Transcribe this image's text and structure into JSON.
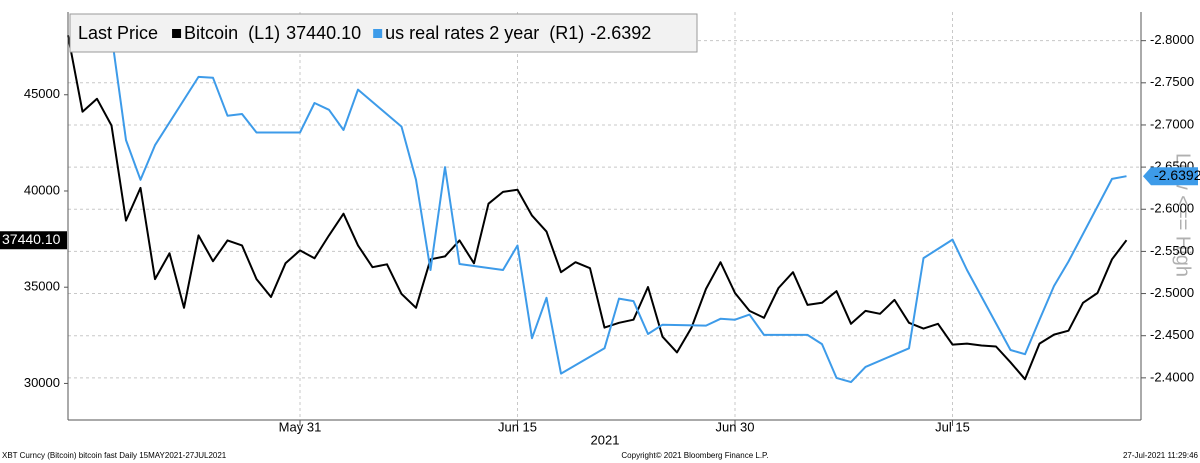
{
  "chart_data": {
    "type": "line",
    "legend_title": "Last Price",
    "xlabel": "2021",
    "y2label": "Low <== High",
    "footer_left": "XBT Curncy (Bitcoin) bitcoin fast  Daily 15MAY2021-27JUL2021",
    "footer_center": "Copyright© 2021 Bloomberg Finance L.P.",
    "footer_right": "27-Jul-2021 11:29:46",
    "xlim": [
      "2021-05-15",
      "2021-07-28"
    ],
    "xticks": [
      {
        "value": "2021-05-31",
        "label": "May 31"
      },
      {
        "value": "2021-06-15",
        "label": "Jun 15"
      },
      {
        "value": "2021-06-30",
        "label": "Jun 30"
      },
      {
        "value": "2021-07-15",
        "label": "Jul 15"
      }
    ],
    "ylim": [
      28100,
      49300
    ],
    "yticks": [
      30000,
      35000,
      40000,
      45000
    ],
    "y2lim": [
      -2.35,
      -2.834
    ],
    "y2ticks": [
      {
        "value": -2.8,
        "label": "-2.8000"
      },
      {
        "value": -2.75,
        "label": "-2.7500"
      },
      {
        "value": -2.7,
        "label": "-2.7000"
      },
      {
        "value": -2.65,
        "label": "-2.6500"
      },
      {
        "value": -2.6,
        "label": "-2.6000"
      },
      {
        "value": -2.55,
        "label": "-2.5500"
      },
      {
        "value": -2.5,
        "label": "-2.5000"
      },
      {
        "value": -2.45,
        "label": "-2.4500"
      },
      {
        "value": -2.4,
        "label": "-2.4000"
      }
    ],
    "grid": true,
    "series": [
      {
        "name": "Bitcoin  (L1)",
        "color": "#000000",
        "axis": "y",
        "last_value_label": "37440.10",
        "x": [
          "2021-05-15",
          "2021-05-16",
          "2021-05-17",
          "2021-05-18",
          "2021-05-19",
          "2021-05-20",
          "2021-05-21",
          "2021-05-22",
          "2021-05-23",
          "2021-05-24",
          "2021-05-25",
          "2021-05-26",
          "2021-05-27",
          "2021-05-28",
          "2021-05-29",
          "2021-05-30",
          "2021-05-31",
          "2021-06-01",
          "2021-06-02",
          "2021-06-03",
          "2021-06-04",
          "2021-06-05",
          "2021-06-06",
          "2021-06-07",
          "2021-06-08",
          "2021-06-09",
          "2021-06-10",
          "2021-06-11",
          "2021-06-12",
          "2021-06-13",
          "2021-06-14",
          "2021-06-15",
          "2021-06-16",
          "2021-06-17",
          "2021-06-18",
          "2021-06-19",
          "2021-06-20",
          "2021-06-21",
          "2021-06-22",
          "2021-06-23",
          "2021-06-24",
          "2021-06-25",
          "2021-06-26",
          "2021-06-27",
          "2021-06-28",
          "2021-06-29",
          "2021-06-30",
          "2021-07-01",
          "2021-07-02",
          "2021-07-03",
          "2021-07-04",
          "2021-07-05",
          "2021-07-06",
          "2021-07-07",
          "2021-07-08",
          "2021-07-09",
          "2021-07-10",
          "2021-07-11",
          "2021-07-12",
          "2021-07-13",
          "2021-07-14",
          "2021-07-15",
          "2021-07-16",
          "2021-07-17",
          "2021-07-18",
          "2021-07-19",
          "2021-07-20",
          "2021-07-21",
          "2021-07-22",
          "2021-07-23",
          "2021-07-24",
          "2021-07-25",
          "2021-07-26",
          "2021-07-27"
        ],
        "values": [
          48090,
          44120,
          44790,
          43400,
          38460,
          40160,
          35420,
          36760,
          33930,
          37690,
          36350,
          37430,
          37170,
          35420,
          34490,
          36240,
          36910,
          36500,
          37690,
          38820,
          37170,
          36040,
          36190,
          34650,
          33930,
          36450,
          36600,
          37430,
          36240,
          39340,
          39950,
          40060,
          38720,
          37890,
          35780,
          36300,
          35990,
          32900,
          33150,
          33310,
          35010,
          32430,
          31610,
          32900,
          34910,
          36300,
          34700,
          33770,
          33410,
          34960,
          35780,
          34080,
          34190,
          34800,
          33100,
          33770,
          33620,
          34340,
          33150,
          32850,
          33100,
          32020,
          32070,
          31970,
          31920,
          31100,
          30220,
          32070,
          32540,
          32740,
          34190,
          34700,
          36450,
          37440.1
        ]
      },
      {
        "name": "us real rates 2 year  (R1)",
        "color": "#3d9be9",
        "axis": "y2",
        "last_value_label": "-2.6392",
        "x": [
          "2021-05-18",
          "2021-05-19",
          "2021-05-20",
          "2021-05-21",
          "2021-05-24",
          "2021-05-25",
          "2021-05-26",
          "2021-05-27",
          "2021-05-28",
          "2021-05-31",
          "2021-06-01",
          "2021-06-02",
          "2021-06-03",
          "2021-06-04",
          "2021-06-07",
          "2021-06-08",
          "2021-06-09",
          "2021-06-10",
          "2021-06-11",
          "2021-06-14",
          "2021-06-15",
          "2021-06-16",
          "2021-06-17",
          "2021-06-18",
          "2021-06-21",
          "2021-06-22",
          "2021-06-23",
          "2021-06-24",
          "2021-06-25",
          "2021-06-28",
          "2021-06-29",
          "2021-06-30",
          "2021-07-01",
          "2021-07-02",
          "2021-07-05",
          "2021-07-06",
          "2021-07-07",
          "2021-07-08",
          "2021-07-09",
          "2021-07-12",
          "2021-07-13",
          "2021-07-14",
          "2021-07-15",
          "2021-07-16",
          "2021-07-19",
          "2021-07-20",
          "2021-07-21",
          "2021-07-22",
          "2021-07-23",
          "2021-07-26",
          "2021-07-27"
        ],
        "values": [
          -2.807,
          -2.682,
          -2.635,
          -2.676,
          -2.757,
          -2.756,
          -2.711,
          -2.713,
          -2.691,
          -2.691,
          -2.726,
          -2.718,
          -2.694,
          -2.742,
          -2.698,
          -2.635,
          -2.528,
          -2.65,
          -2.535,
          -2.528,
          -2.557,
          -2.447,
          -2.495,
          -2.405,
          -2.435,
          -2.494,
          -2.491,
          -2.452,
          -2.463,
          -2.462,
          -2.47,
          -2.469,
          -2.475,
          -2.451,
          -2.451,
          -2.44,
          -2.4,
          -2.395,
          -2.413,
          -2.435,
          -2.542,
          -2.553,
          -2.564,
          -2.528,
          -2.433,
          -2.428,
          -2.469,
          -2.509,
          -2.538,
          -2.636,
          -2.6392
        ]
      }
    ]
  }
}
